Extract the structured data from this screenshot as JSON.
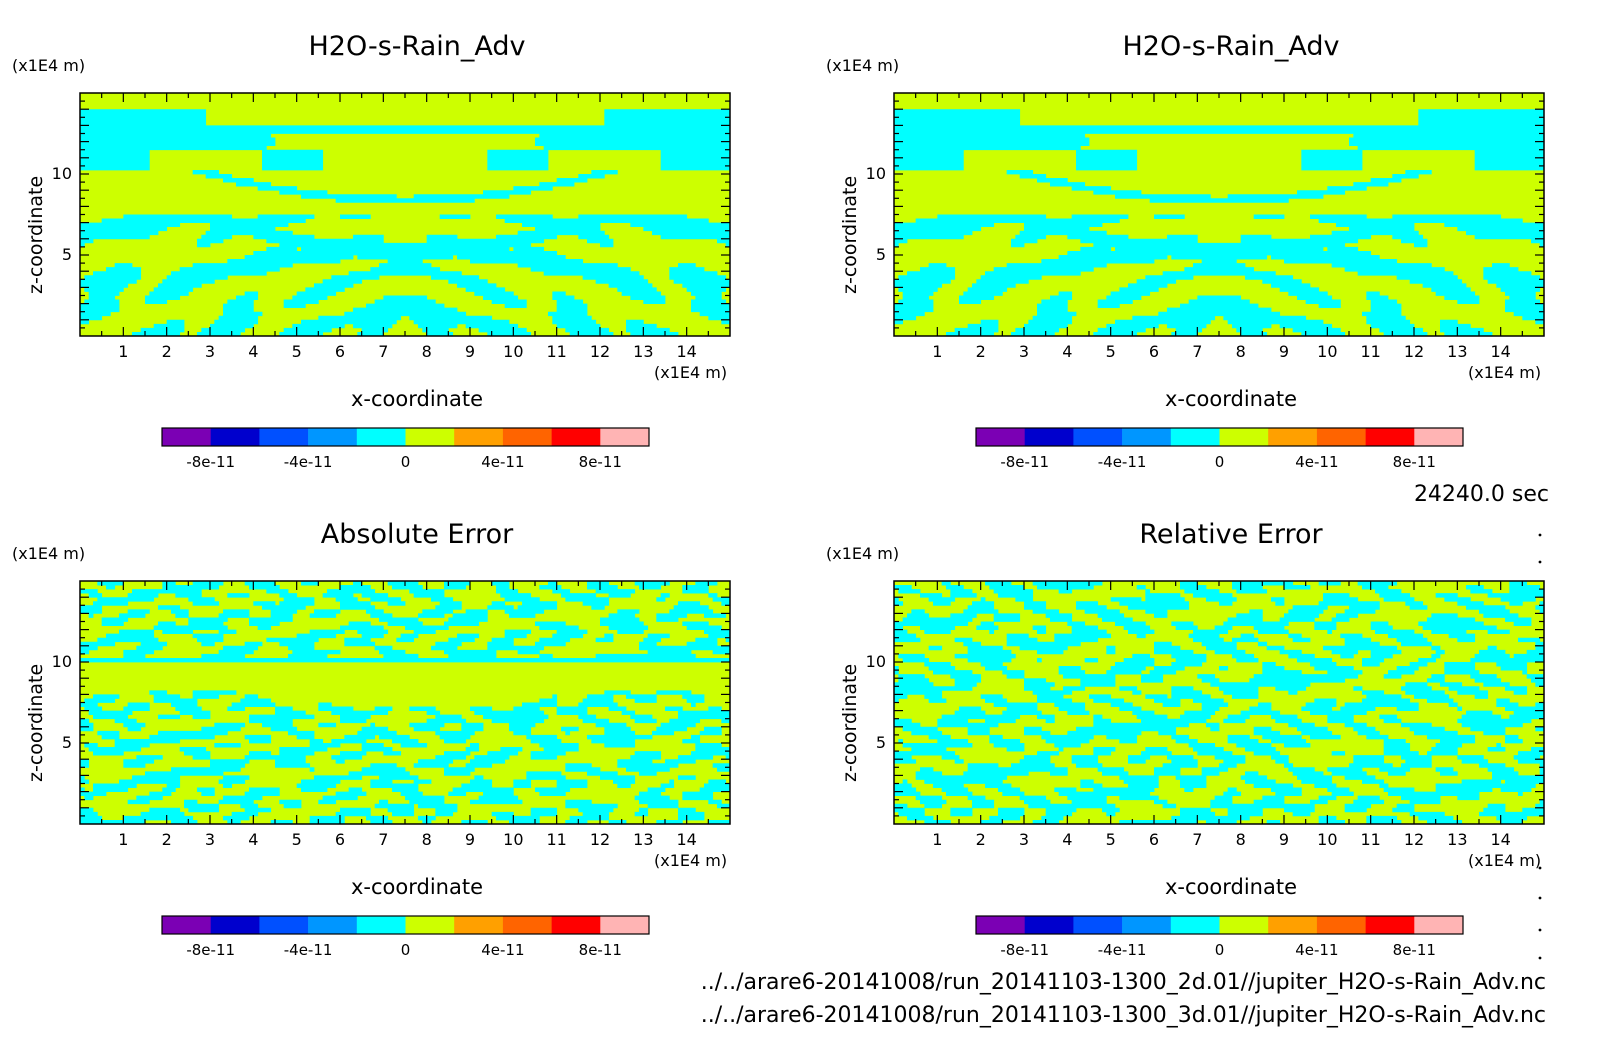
{
  "footer": {
    "file_2d": "../../arare6-20141008/run_20141103-1300_2d.01//jupiter_H2O-s-Rain_Adv.nc",
    "file_3d": "../../arare6-20141008/run_20141103-1300_3d.01//jupiter_H2O-s-Rain_Adv.nc",
    "timestamp": "24240.0 sec"
  },
  "colors": {
    "palette": [
      "#7b00b4",
      "#0000cd",
      "#0050ff",
      "#0096ff",
      "#00ffff",
      "#cdff00",
      "#ffa000",
      "#ff6400",
      "#ff0000",
      "#ffb4b4"
    ],
    "dominant_a": "#00ffff",
    "dominant_b": "#cdff00"
  },
  "chart_data": [
    {
      "type": "heatmap",
      "title": "H2O-s-Rain_Adv",
      "xlabel": "x-coordinate",
      "ylabel": "z-coordinate",
      "x_unit": "(x1E4 m)",
      "y_unit": "(x1E4 m)",
      "xlim": [
        0,
        15
      ],
      "ylim": [
        0,
        15
      ],
      "x_ticks": [
        "1",
        "2",
        "3",
        "4",
        "5",
        "6",
        "7",
        "8",
        "9",
        "10",
        "11",
        "12",
        "13",
        "14"
      ],
      "y_ticks": [
        "5",
        "10"
      ],
      "colorbar": {
        "levels": [
          -1e-10,
          -8e-11,
          -6e-11,
          -4e-11,
          -2e-11,
          0,
          2e-11,
          4e-11,
          6e-11,
          8e-11,
          1e-10
        ],
        "tick_labels": [
          "-8e-11",
          "-4e-11",
          "0",
          "4e-11",
          "8e-11"
        ]
      },
      "field": {
        "dominant_levels": [
          "0 to 2e-11",
          "-2e-11 to 0"
        ]
      }
    },
    {
      "type": "heatmap",
      "title": "H2O-s-Rain_Adv",
      "xlabel": "x-coordinate",
      "ylabel": "z-coordinate",
      "x_unit": "(x1E4 m)",
      "y_unit": "(x1E4 m)",
      "xlim": [
        0,
        15
      ],
      "ylim": [
        0,
        15
      ],
      "x_ticks": [
        "1",
        "2",
        "3",
        "4",
        "5",
        "6",
        "7",
        "8",
        "9",
        "10",
        "11",
        "12",
        "13",
        "14"
      ],
      "y_ticks": [
        "5",
        "10"
      ],
      "colorbar": {
        "levels": [
          -1e-10,
          -8e-11,
          -6e-11,
          -4e-11,
          -2e-11,
          0,
          2e-11,
          4e-11,
          6e-11,
          8e-11,
          1e-10
        ],
        "tick_labels": [
          "-8e-11",
          "-4e-11",
          "0",
          "4e-11",
          "8e-11"
        ]
      },
      "field": {
        "dominant_levels": [
          "0 to 2e-11",
          "-2e-11 to 0"
        ]
      }
    },
    {
      "type": "heatmap",
      "title": "Absolute Error",
      "xlabel": "x-coordinate",
      "ylabel": "z-coordinate",
      "x_unit": "(x1E4 m)",
      "y_unit": "(x1E4 m)",
      "xlim": [
        0,
        15
      ],
      "ylim": [
        0,
        15
      ],
      "x_ticks": [
        "1",
        "2",
        "3",
        "4",
        "5",
        "6",
        "7",
        "8",
        "9",
        "10",
        "11",
        "12",
        "13",
        "14"
      ],
      "y_ticks": [
        "5",
        "10"
      ],
      "colorbar": {
        "levels": [
          -1e-10,
          -8e-11,
          -6e-11,
          -4e-11,
          -2e-11,
          0,
          2e-11,
          4e-11,
          6e-11,
          8e-11,
          1e-10
        ],
        "tick_labels": [
          "-8e-11",
          "-4e-11",
          "0",
          "4e-11",
          "8e-11"
        ]
      },
      "field": {
        "dominant_levels": [
          "0 to 2e-11",
          "-2e-11 to 0"
        ]
      }
    },
    {
      "type": "heatmap",
      "title": "Relative Error",
      "xlabel": "x-coordinate",
      "ylabel": "z-coordinate",
      "x_unit": "(x1E4 m)",
      "y_unit": "(x1E4 m)",
      "xlim": [
        0,
        15
      ],
      "ylim": [
        0,
        15
      ],
      "x_ticks": [
        "1",
        "2",
        "3",
        "4",
        "5",
        "6",
        "7",
        "8",
        "9",
        "10",
        "11",
        "12",
        "13",
        "14"
      ],
      "y_ticks": [
        "5",
        "10"
      ],
      "colorbar": {
        "levels": [
          -1e-10,
          -8e-11,
          -6e-11,
          -4e-11,
          -2e-11,
          0,
          2e-11,
          4e-11,
          6e-11,
          8e-11,
          1e-10
        ],
        "tick_labels": [
          "-8e-11",
          "-4e-11",
          "0",
          "4e-11",
          "8e-11"
        ]
      },
      "field": {
        "dominant_levels": [
          "0 to 2e-11",
          "-2e-11 to 0"
        ]
      }
    }
  ]
}
